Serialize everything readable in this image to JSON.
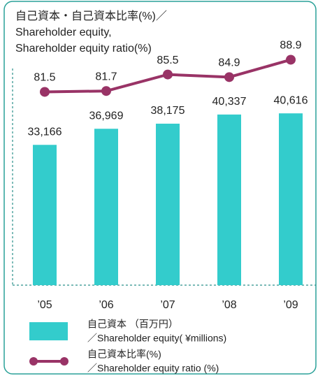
{
  "chart_data": {
    "type": "bar_line",
    "title": [
      "自己資本・自己資本比率(%)／",
      "Shareholder equity,",
      "Shareholder equity ratio(%)"
    ],
    "categories": [
      "’05",
      "’06",
      "’07",
      "’08",
      "’09"
    ],
    "series": [
      {
        "name": [
          "自己資本 （百万円）",
          "／Shareholder equity( ¥millions)"
        ],
        "type": "bar",
        "color": "#33cccc",
        "values": [
          33166,
          36969,
          38175,
          40337,
          40616
        ],
        "value_labels": [
          "33,166",
          "36,969",
          "38,175",
          "40,337",
          "40,616"
        ]
      },
      {
        "name": [
          "自己資本比率(%)",
          "／Shareholder equity ratio (%)"
        ],
        "type": "line",
        "color": "#993366",
        "axis": "y2",
        "values": [
          81.5,
          81.7,
          85.5,
          84.9,
          88.9
        ]
      }
    ],
    "ylim": [
      0,
      57500
    ],
    "y2lim": [
      37,
      93
    ]
  }
}
